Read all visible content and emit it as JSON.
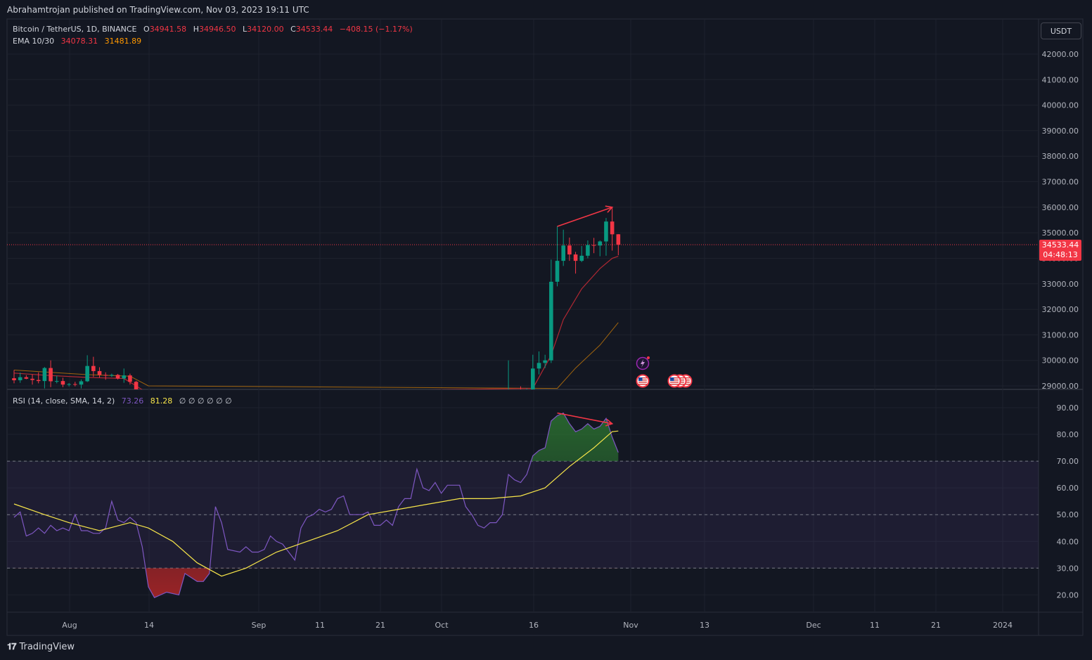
{
  "header": {
    "published_text": "Abrahamtrojan published on TradingView.com, Nov 03, 2023 19:11 UTC"
  },
  "legend": {
    "symbol": "Bitcoin / TetherUS, 1D, BINANCE",
    "open_label": "O",
    "open_value": "34941.58",
    "high_label": "H",
    "high_value": "34946.50",
    "low_label": "L",
    "low_value": "34120.00",
    "close_label": "C",
    "close_value": "34533.44",
    "change": "−408.15 (−1.17%)",
    "ema_label": "EMA 10/30",
    "ema_fast": "34078.31",
    "ema_slow": "31481.89",
    "rsi_label": "RSI (14, close, SMA, 14, 2)",
    "rsi_value": "73.26",
    "rsi_sma": "81.28",
    "rsi_extras": "∅ ∅ ∅ ∅ ∅ ∅"
  },
  "currency": "USDT",
  "last_price": {
    "price": "34533.44",
    "countdown": "04:48:13"
  },
  "footer": {
    "brand": "TradingView"
  },
  "colors": {
    "up": "#089981",
    "down": "#f23645",
    "ema_fast": "#b22833",
    "ema_slow": "#ff9800",
    "rsi": "#7e57c2",
    "rsi_sma": "#f7e54a",
    "annotation": "#f23645"
  },
  "icons": [
    "snapshot-icon",
    "us-flag-icon",
    "tradingview-logo-icon"
  ],
  "chart_data": [
    {
      "type": "candlestick",
      "x_ticks": [
        "Aug",
        "14",
        "Sep",
        "11",
        "21",
        "Oct",
        "16",
        "Nov",
        "13",
        "Dec",
        "11",
        "21",
        "2024"
      ],
      "y_ticks": [
        42000,
        41000,
        40000,
        39000,
        38000,
        37000,
        36000,
        35000,
        34000,
        33000,
        32000,
        31000,
        30000,
        29000
      ],
      "ylim": [
        28900,
        42800
      ],
      "candles": [
        {
          "d": "2023-07-27",
          "o": 29300,
          "h": 29620,
          "l": 29100,
          "c": 29220
        },
        {
          "d": "2023-07-28",
          "o": 29220,
          "h": 29520,
          "l": 29120,
          "c": 29340
        },
        {
          "d": "2023-07-29",
          "o": 29340,
          "h": 29420,
          "l": 29260,
          "c": 29280
        },
        {
          "d": "2023-07-30",
          "o": 29280,
          "h": 29450,
          "l": 29050,
          "c": 29230
        },
        {
          "d": "2023-07-31",
          "o": 29230,
          "h": 29530,
          "l": 29100,
          "c": 29190
        },
        {
          "d": "2023-08-01",
          "o": 29190,
          "h": 29740,
          "l": 28900,
          "c": 29700
        },
        {
          "d": "2023-08-02",
          "o": 29700,
          "h": 30000,
          "l": 28950,
          "c": 29180
        },
        {
          "d": "2023-08-03",
          "o": 29180,
          "h": 29400,
          "l": 29100,
          "c": 29190
        },
        {
          "d": "2023-08-04",
          "o": 29190,
          "h": 29320,
          "l": 28950,
          "c": 29050
        },
        {
          "d": "2023-08-05",
          "o": 29050,
          "h": 29110,
          "l": 28980,
          "c": 29070
        },
        {
          "d": "2023-08-06",
          "o": 29070,
          "h": 29160,
          "l": 28980,
          "c": 29050
        },
        {
          "d": "2023-08-07",
          "o": 29050,
          "h": 29250,
          "l": 28900,
          "c": 29180
        },
        {
          "d": "2023-08-08",
          "o": 29180,
          "h": 30200,
          "l": 29150,
          "c": 29780
        },
        {
          "d": "2023-08-09",
          "o": 29780,
          "h": 30140,
          "l": 29350,
          "c": 29580
        },
        {
          "d": "2023-08-10",
          "o": 29580,
          "h": 29730,
          "l": 29330,
          "c": 29430
        },
        {
          "d": "2023-08-11",
          "o": 29430,
          "h": 29530,
          "l": 29240,
          "c": 29400
        },
        {
          "d": "2023-08-12",
          "o": 29400,
          "h": 29480,
          "l": 29350,
          "c": 29430
        },
        {
          "d": "2023-08-13",
          "o": 29430,
          "h": 29470,
          "l": 29250,
          "c": 29290
        },
        {
          "d": "2023-08-14",
          "o": 29290,
          "h": 29680,
          "l": 29120,
          "c": 29410
        },
        {
          "d": "2023-08-15",
          "o": 29410,
          "h": 29480,
          "l": 29050,
          "c": 29160
        },
        {
          "d": "2023-08-16",
          "o": 29160,
          "h": 29200,
          "l": 28700,
          "c": 28700
        },
        {
          "d": "2023-10-16",
          "o": 27150,
          "h": 30000,
          "l": 27100,
          "c": 28500
        },
        {
          "d": "2023-10-17",
          "o": 28500,
          "h": 28620,
          "l": 28100,
          "c": 28400
        },
        {
          "d": "2023-10-18",
          "o": 28400,
          "h": 28980,
          "l": 28150,
          "c": 28320
        },
        {
          "d": "2023-10-19",
          "o": 28320,
          "h": 28900,
          "l": 28250,
          "c": 28720
        },
        {
          "d": "2023-10-20",
          "o": 28720,
          "h": 30220,
          "l": 28600,
          "c": 29680
        },
        {
          "d": "2023-10-21",
          "o": 29680,
          "h": 30350,
          "l": 29450,
          "c": 29900
        },
        {
          "d": "2023-10-22",
          "o": 29900,
          "h": 30220,
          "l": 29700,
          "c": 30000
        },
        {
          "d": "2023-10-23",
          "o": 30000,
          "h": 33950,
          "l": 29900,
          "c": 33080
        },
        {
          "d": "2023-10-24",
          "o": 33080,
          "h": 35250,
          "l": 32900,
          "c": 33900
        },
        {
          "d": "2023-10-25",
          "o": 33900,
          "h": 35120,
          "l": 33700,
          "c": 34500
        },
        {
          "d": "2023-10-26",
          "o": 34500,
          "h": 34810,
          "l": 33900,
          "c": 34150
        },
        {
          "d": "2023-10-27",
          "o": 34150,
          "h": 34250,
          "l": 33400,
          "c": 33900
        },
        {
          "d": "2023-10-28",
          "o": 33900,
          "h": 34480,
          "l": 33850,
          "c": 34100
        },
        {
          "d": "2023-10-29",
          "o": 34100,
          "h": 34700,
          "l": 34000,
          "c": 34520
        },
        {
          "d": "2023-10-30",
          "o": 34520,
          "h": 34800,
          "l": 34200,
          "c": 34500
        },
        {
          "d": "2023-10-31",
          "o": 34500,
          "h": 34700,
          "l": 34080,
          "c": 34660
        },
        {
          "d": "2023-11-01",
          "o": 34660,
          "h": 35580,
          "l": 34100,
          "c": 35440
        },
        {
          "d": "2023-11-02",
          "o": 35440,
          "h": 35980,
          "l": 34300,
          "c": 34940
        },
        {
          "d": "2023-11-03",
          "o": 34941.58,
          "h": 34946.5,
          "l": 34120,
          "c": 34533.44
        }
      ],
      "ema_fast": [
        {
          "d": "2023-07-27",
          "v": 29500
        },
        {
          "d": "2023-08-01",
          "v": 29420
        },
        {
          "d": "2023-08-08",
          "v": 29330
        },
        {
          "d": "2023-08-14",
          "v": 29290
        },
        {
          "d": "2023-08-16",
          "v": 29000
        },
        {
          "d": "2023-08-18",
          "v": 28700
        },
        {
          "d": "2023-10-20",
          "v": 28900
        },
        {
          "d": "2023-10-23",
          "v": 30200
        },
        {
          "d": "2023-10-25",
          "v": 31600
        },
        {
          "d": "2023-10-28",
          "v": 32800
        },
        {
          "d": "2023-10-31",
          "v": 33600
        },
        {
          "d": "2023-11-02",
          "v": 34000
        },
        {
          "d": "2023-11-03",
          "v": 34078.31
        }
      ],
      "ema_slow": [
        {
          "d": "2023-07-27",
          "v": 29620
        },
        {
          "d": "2023-08-08",
          "v": 29440
        },
        {
          "d": "2023-08-15",
          "v": 29380
        },
        {
          "d": "2023-08-18",
          "v": 29000
        },
        {
          "d": "2023-10-24",
          "v": 28900
        },
        {
          "d": "2023-10-27",
          "v": 29700
        },
        {
          "d": "2023-10-31",
          "v": 30600
        },
        {
          "d": "2023-11-03",
          "v": 31481.89
        }
      ],
      "last_price_line": 34533.44,
      "annotation": {
        "type": "arrow",
        "from": {
          "d": "2023-10-24",
          "v": 35250
        },
        "to": {
          "d": "2023-11-02",
          "v": 36000
        }
      }
    },
    {
      "type": "line",
      "title": "RSI (14, close, SMA, 14, 2)",
      "y_ticks": [
        90,
        80,
        70,
        60,
        50,
        40,
        30,
        20
      ],
      "ylim": [
        13,
        93
      ],
      "bands": {
        "upper": 70,
        "middle": 50,
        "lower": 30
      },
      "rsi": [
        {
          "d": "2023-07-27",
          "v": 49
        },
        {
          "d": "2023-07-28",
          "v": 51
        },
        {
          "d": "2023-07-29",
          "v": 42
        },
        {
          "d": "2023-07-30",
          "v": 43
        },
        {
          "d": "2023-07-31",
          "v": 45
        },
        {
          "d": "2023-08-01",
          "v": 43
        },
        {
          "d": "2023-08-02",
          "v": 46
        },
        {
          "d": "2023-08-03",
          "v": 44
        },
        {
          "d": "2023-08-04",
          "v": 45
        },
        {
          "d": "2023-08-05",
          "v": 44
        },
        {
          "d": "2023-08-06",
          "v": 50
        },
        {
          "d": "2023-08-07",
          "v": 44
        },
        {
          "d": "2023-08-08",
          "v": 44
        },
        {
          "d": "2023-08-09",
          "v": 43
        },
        {
          "d": "2023-08-10",
          "v": 43
        },
        {
          "d": "2023-08-11",
          "v": 45
        },
        {
          "d": "2023-08-12",
          "v": 55
        },
        {
          "d": "2023-08-13",
          "v": 48
        },
        {
          "d": "2023-08-14",
          "v": 47
        },
        {
          "d": "2023-08-15",
          "v": 49
        },
        {
          "d": "2023-08-16",
          "v": 47
        },
        {
          "d": "2023-08-17",
          "v": 38
        },
        {
          "d": "2023-08-18",
          "v": 23
        },
        {
          "d": "2023-08-19",
          "v": 19
        },
        {
          "d": "2023-08-21",
          "v": 21
        },
        {
          "d": "2023-08-23",
          "v": 20
        },
        {
          "d": "2023-08-24",
          "v": 28
        },
        {
          "d": "2023-08-26",
          "v": 25
        },
        {
          "d": "2023-08-27",
          "v": 25
        },
        {
          "d": "2023-08-28",
          "v": 28
        },
        {
          "d": "2023-08-29",
          "v": 53
        },
        {
          "d": "2023-08-30",
          "v": 47
        },
        {
          "d": "2023-08-31",
          "v": 37
        },
        {
          "d": "2023-09-02",
          "v": 36
        },
        {
          "d": "2023-09-03",
          "v": 38
        },
        {
          "d": "2023-09-04",
          "v": 36
        },
        {
          "d": "2023-09-05",
          "v": 36
        },
        {
          "d": "2023-09-06",
          "v": 37
        },
        {
          "d": "2023-09-07",
          "v": 42
        },
        {
          "d": "2023-09-08",
          "v": 40
        },
        {
          "d": "2023-09-09",
          "v": 39
        },
        {
          "d": "2023-09-10",
          "v": 36
        },
        {
          "d": "2023-09-11",
          "v": 33
        },
        {
          "d": "2023-09-12",
          "v": 45
        },
        {
          "d": "2023-09-13",
          "v": 49
        },
        {
          "d": "2023-09-14",
          "v": 50
        },
        {
          "d": "2023-09-15",
          "v": 52
        },
        {
          "d": "2023-09-16",
          "v": 51
        },
        {
          "d": "2023-09-17",
          "v": 52
        },
        {
          "d": "2023-09-18",
          "v": 56
        },
        {
          "d": "2023-09-19",
          "v": 57
        },
        {
          "d": "2023-09-20",
          "v": 50
        },
        {
          "d": "2023-09-21",
          "v": 50
        },
        {
          "d": "2023-09-22",
          "v": 50
        },
        {
          "d": "2023-09-23",
          "v": 51
        },
        {
          "d": "2023-09-24",
          "v": 46
        },
        {
          "d": "2023-09-25",
          "v": 46
        },
        {
          "d": "2023-09-26",
          "v": 48
        },
        {
          "d": "2023-09-27",
          "v": 46
        },
        {
          "d": "2023-09-28",
          "v": 53
        },
        {
          "d": "2023-09-29",
          "v": 56
        },
        {
          "d": "2023-09-30",
          "v": 56
        },
        {
          "d": "2023-10-01",
          "v": 67
        },
        {
          "d": "2023-10-02",
          "v": 60
        },
        {
          "d": "2023-10-03",
          "v": 59
        },
        {
          "d": "2023-10-04",
          "v": 62
        },
        {
          "d": "2023-10-05",
          "v": 58
        },
        {
          "d": "2023-10-06",
          "v": 61
        },
        {
          "d": "2023-10-07",
          "v": 61
        },
        {
          "d": "2023-10-08",
          "v": 61
        },
        {
          "d": "2023-10-09",
          "v": 53
        },
        {
          "d": "2023-10-10",
          "v": 50
        },
        {
          "d": "2023-10-11",
          "v": 46
        },
        {
          "d": "2023-10-12",
          "v": 45
        },
        {
          "d": "2023-10-13",
          "v": 47
        },
        {
          "d": "2023-10-14",
          "v": 47
        },
        {
          "d": "2023-10-15",
          "v": 50
        },
        {
          "d": "2023-10-16",
          "v": 65
        },
        {
          "d": "2023-10-17",
          "v": 63
        },
        {
          "d": "2023-10-18",
          "v": 62
        },
        {
          "d": "2023-10-19",
          "v": 65
        },
        {
          "d": "2023-10-20",
          "v": 72
        },
        {
          "d": "2023-10-21",
          "v": 74
        },
        {
          "d": "2023-10-22",
          "v": 75
        },
        {
          "d": "2023-10-23",
          "v": 85
        },
        {
          "d": "2023-10-24",
          "v": 87
        },
        {
          "d": "2023-10-25",
          "v": 88
        },
        {
          "d": "2023-10-26",
          "v": 84
        },
        {
          "d": "2023-10-27",
          "v": 81
        },
        {
          "d": "2023-10-28",
          "v": 82
        },
        {
          "d": "2023-10-29",
          "v": 84
        },
        {
          "d": "2023-10-30",
          "v": 82
        },
        {
          "d": "2023-10-31",
          "v": 83
        },
        {
          "d": "2023-11-01",
          "v": 86
        },
        {
          "d": "2023-11-02",
          "v": 79
        },
        {
          "d": "2023-11-03",
          "v": 73.26
        }
      ],
      "rsi_sma": [
        {
          "d": "2023-07-27",
          "v": 54
        },
        {
          "d": "2023-08-01",
          "v": 50
        },
        {
          "d": "2023-08-05",
          "v": 47
        },
        {
          "d": "2023-08-10",
          "v": 44
        },
        {
          "d": "2023-08-15",
          "v": 47
        },
        {
          "d": "2023-08-18",
          "v": 45
        },
        {
          "d": "2023-08-22",
          "v": 40
        },
        {
          "d": "2023-08-26",
          "v": 32
        },
        {
          "d": "2023-08-30",
          "v": 27
        },
        {
          "d": "2023-09-03",
          "v": 30
        },
        {
          "d": "2023-09-08",
          "v": 36
        },
        {
          "d": "2023-09-13",
          "v": 40
        },
        {
          "d": "2023-09-18",
          "v": 44
        },
        {
          "d": "2023-09-23",
          "v": 50
        },
        {
          "d": "2023-09-28",
          "v": 52
        },
        {
          "d": "2023-10-03",
          "v": 54
        },
        {
          "d": "2023-10-08",
          "v": 56
        },
        {
          "d": "2023-10-13",
          "v": 56
        },
        {
          "d": "2023-10-18",
          "v": 57
        },
        {
          "d": "2023-10-22",
          "v": 60
        },
        {
          "d": "2023-10-26",
          "v": 68
        },
        {
          "d": "2023-10-30",
          "v": 75
        },
        {
          "d": "2023-11-02",
          "v": 81
        },
        {
          "d": "2023-11-03",
          "v": 81.28
        }
      ],
      "annotation": {
        "type": "arrow",
        "from": {
          "d": "2023-10-24",
          "v": 88
        },
        "to": {
          "d": "2023-11-02",
          "v": 84
        }
      }
    }
  ]
}
